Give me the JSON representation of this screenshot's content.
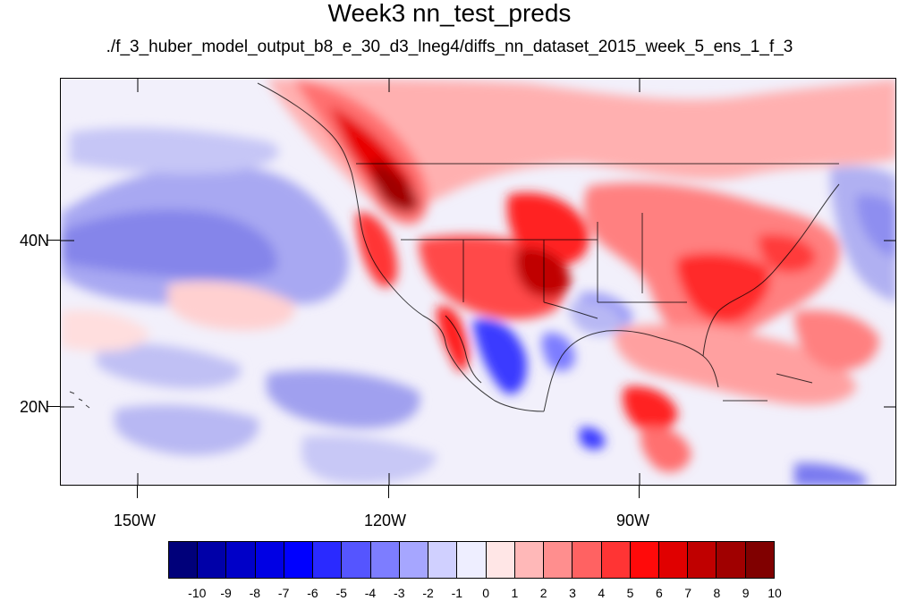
{
  "title": "Week3 nn_test_preds",
  "subtitle": "./f_3_huber_model_output_b8_e_30_d3_lneg4/diffs_nn_dataset_2015_week_5_ens_1_f_3",
  "map": {
    "lon_labels": [
      "150W",
      "120W",
      "90W"
    ],
    "lat_labels": [
      "40N",
      "20N"
    ]
  },
  "colorbar": {
    "labels": [
      "-10",
      "-9",
      "-8",
      "-7",
      "-6",
      "-5",
      "-4",
      "-3",
      "-2",
      "-1",
      "0",
      "1",
      "2",
      "3",
      "4",
      "5",
      "6",
      "7",
      "8",
      "9",
      "10"
    ],
    "colors": [
      "#00007a",
      "#0000a8",
      "#0000c8",
      "#0000e4",
      "#0000ff",
      "#2a2aff",
      "#5555ff",
      "#7d7dff",
      "#a6a6ff",
      "#d0d0ff",
      "#eeeeff",
      "#ffe6e6",
      "#ffb8b8",
      "#ff8e8e",
      "#ff6262",
      "#ff3434",
      "#ff0a0a",
      "#e00000",
      "#c00000",
      "#a00000",
      "#800000"
    ]
  }
}
